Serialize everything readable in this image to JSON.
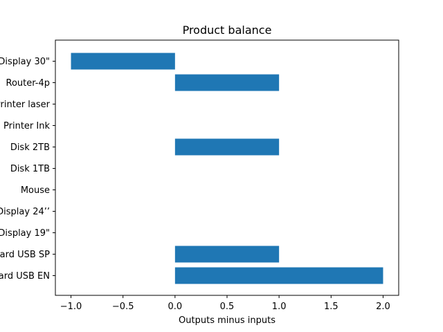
{
  "chart_data": {
    "type": "bar",
    "orientation": "horizontal",
    "title": "Product balance",
    "xlabel": "Outputs minus inputs",
    "ylabel": "",
    "categories": [
      "Keyboard USB EN",
      "Keyboard USB SP",
      "Display 19\"",
      "Display 24’’",
      "Mouse ",
      "Disk 1TB",
      "Disk 2TB",
      "Printer Ink",
      "Printer laser",
      "Router-4p",
      "Display 30\""
    ],
    "values": [
      2,
      1,
      0,
      0,
      0,
      0,
      1,
      0,
      0,
      1,
      -1
    ],
    "xlim": [
      -1.15,
      2.15
    ],
    "xticks": [
      -1.0,
      -0.5,
      0.0,
      0.5,
      1.0,
      1.5,
      2.0
    ],
    "xtick_labels": [
      "−1.0",
      "−0.5",
      "0.0",
      "0.5",
      "1.0",
      "1.5",
      "2.0"
    ],
    "bar_color": "#1f77b4",
    "grid": false,
    "legend": "none"
  }
}
